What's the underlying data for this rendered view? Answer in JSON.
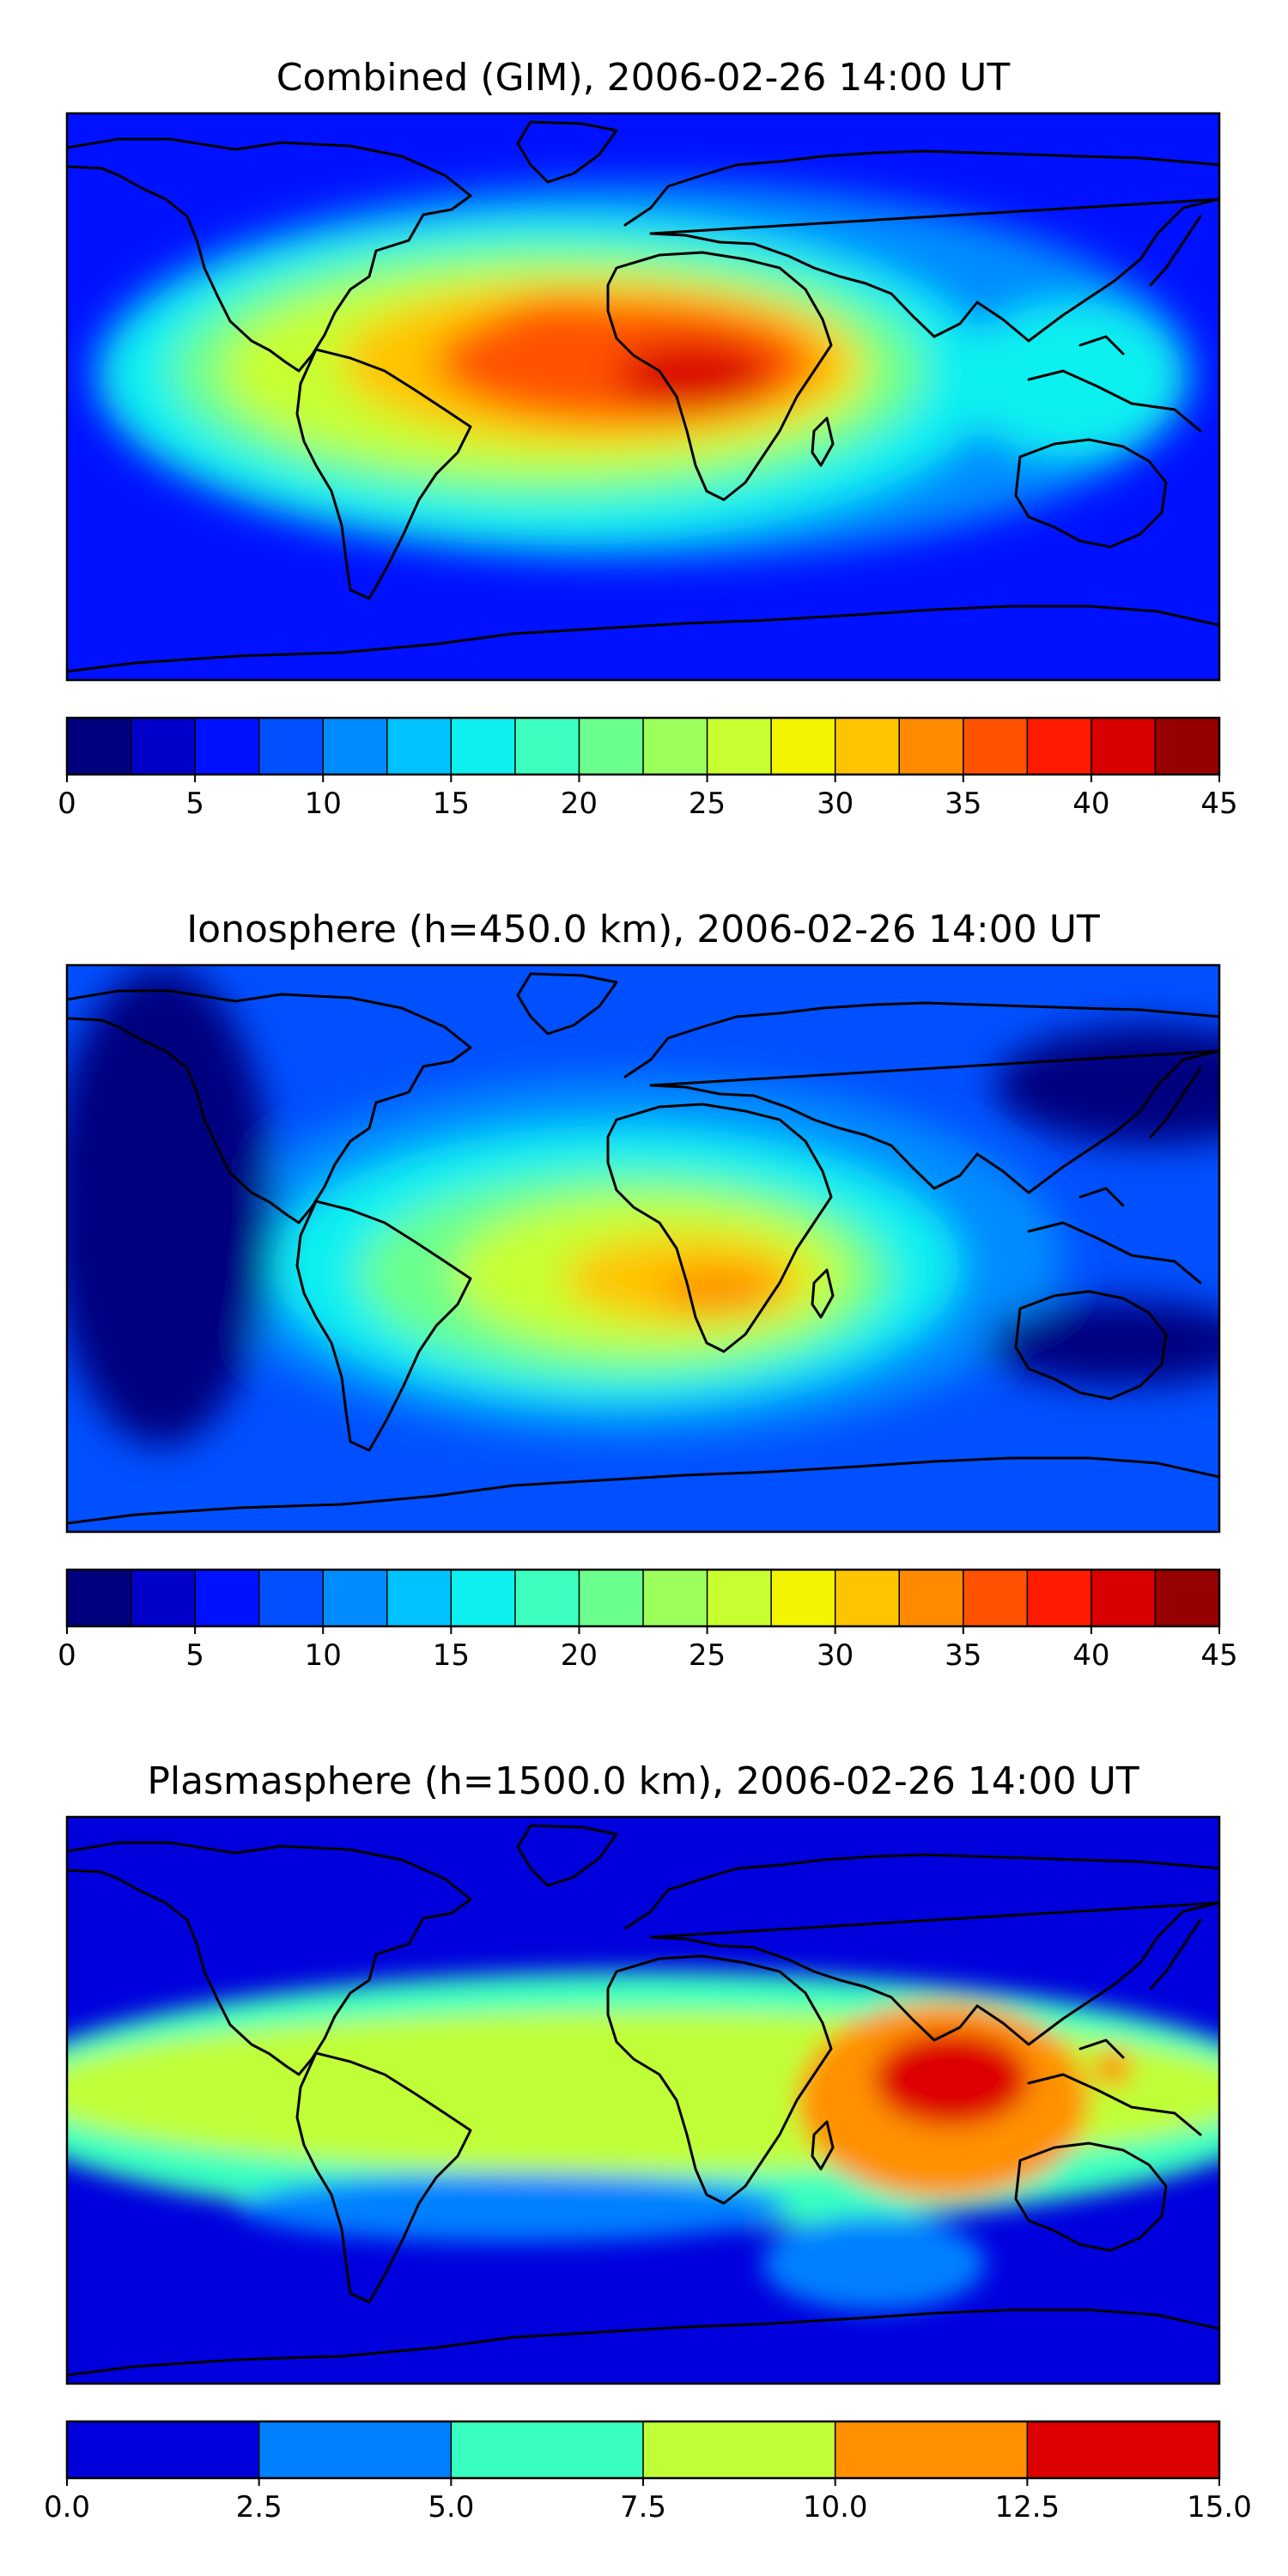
{
  "chart_data": [
    {
      "type": "heatmap",
      "title": "Combined (GIM), 2006-02-26 14:00 UT",
      "field_description": "global contour map with coastlines; colorbar below",
      "colorbar": {
        "vmin": 0,
        "vmax": 45,
        "step": 2.5,
        "ticks": [
          0,
          5,
          10,
          15,
          20,
          25,
          30,
          35,
          40,
          45
        ],
        "tick_labels": [
          "0",
          "5",
          "10",
          "15",
          "20",
          "25",
          "30",
          "35",
          "40",
          "45"
        ],
        "colors": [
          "#00007f",
          "#0000c9",
          "#0011ff",
          "#0050ff",
          "#008cff",
          "#00c2ff",
          "#0ef0f0",
          "#3dffc0",
          "#6bff8d",
          "#9cff5b",
          "#c7ff30",
          "#f3f500",
          "#ffc400",
          "#ff8a00",
          "#ff5200",
          "#ff1b00",
          "#d90000",
          "#970000"
        ]
      },
      "peak_value_approx": 40
    },
    {
      "type": "heatmap",
      "title": "Ionosphere  (h=450.0 km), 2006-02-26 14:00 UT",
      "field_description": "global contour map with coastlines; colorbar below",
      "colorbar": {
        "vmin": 0,
        "vmax": 45,
        "step": 2.5,
        "ticks": [
          0,
          5,
          10,
          15,
          20,
          25,
          30,
          35,
          40,
          45
        ],
        "tick_labels": [
          "0",
          "5",
          "10",
          "15",
          "20",
          "25",
          "30",
          "35",
          "40",
          "45"
        ],
        "colors": [
          "#00007f",
          "#0000c9",
          "#0011ff",
          "#0050ff",
          "#008cff",
          "#00c2ff",
          "#0ef0f0",
          "#3dffc0",
          "#6bff8d",
          "#9cff5b",
          "#c7ff30",
          "#f3f500",
          "#ffc400",
          "#ff8a00",
          "#ff5200",
          "#ff1b00",
          "#d90000",
          "#970000"
        ]
      },
      "peak_value_approx": 33
    },
    {
      "type": "heatmap",
      "title": "Plasmasphere (h=1500.0 km), 2006-02-26 14:00 UT",
      "field_description": "global contour map with coastlines; colorbar below",
      "colorbar": {
        "vmin": 0,
        "vmax": 15,
        "step": 2.5,
        "ticks": [
          0,
          2.5,
          5,
          7.5,
          10,
          12.5,
          15
        ],
        "tick_labels": [
          "0.0",
          "2.5",
          "5.0",
          "7.5",
          "10.0",
          "12.5",
          "15.0"
        ],
        "colors": [
          "#0000dd",
          "#0080ff",
          "#38ffc0",
          "#c0ff38",
          "#ff9100",
          "#dd0000"
        ]
      },
      "peak_value_approx": 14
    }
  ]
}
